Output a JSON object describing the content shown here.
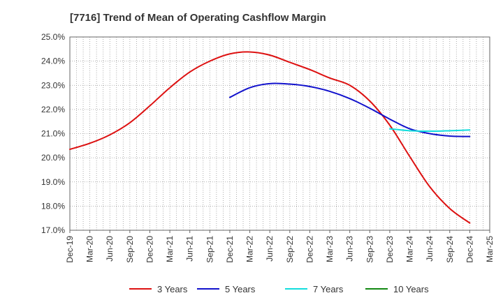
{
  "chart_data": {
    "type": "line",
    "title": "[7716]  Trend of Mean of Operating Cashflow Margin",
    "xlabel": "",
    "ylabel": "",
    "x_ticks": [
      "Dec-19",
      "Mar-20",
      "Jun-20",
      "Sep-20",
      "Dec-20",
      "Mar-21",
      "Jun-21",
      "Sep-21",
      "Dec-21",
      "Mar-22",
      "Jun-22",
      "Sep-22",
      "Dec-22",
      "Mar-23",
      "Jun-23",
      "Sep-23",
      "Dec-23",
      "Mar-24",
      "Jun-24",
      "Sep-24",
      "Dec-24",
      "Mar-25"
    ],
    "y_ticks": [
      "17.0%",
      "18.0%",
      "19.0%",
      "20.0%",
      "21.0%",
      "22.0%",
      "23.0%",
      "24.0%",
      "25.0%"
    ],
    "ylim": [
      17.0,
      25.0
    ],
    "grid": true,
    "legend_position": "bottom",
    "series": [
      {
        "name": "3 Years",
        "color": "#dd1111",
        "x": [
          "Dec-19",
          "Mar-20",
          "Jun-20",
          "Sep-20",
          "Dec-20",
          "Mar-21",
          "Jun-21",
          "Sep-21",
          "Dec-21",
          "Mar-22",
          "Jun-22",
          "Sep-22",
          "Dec-22",
          "Mar-23",
          "Jun-23",
          "Sep-23",
          "Dec-23",
          "Mar-24",
          "Jun-24",
          "Sep-24",
          "Dec-24"
        ],
        "values": [
          20.35,
          20.6,
          20.95,
          21.45,
          22.15,
          22.9,
          23.55,
          24.0,
          24.3,
          24.38,
          24.25,
          23.95,
          23.65,
          23.3,
          23.0,
          22.35,
          21.35,
          20.05,
          18.8,
          17.9,
          17.3
        ]
      },
      {
        "name": "5 Years",
        "color": "#1111cc",
        "x": [
          "Dec-21",
          "Mar-22",
          "Jun-22",
          "Sep-22",
          "Dec-22",
          "Mar-23",
          "Jun-23",
          "Sep-23",
          "Dec-23",
          "Mar-24",
          "Jun-24",
          "Sep-24",
          "Dec-24"
        ],
        "values": [
          22.5,
          22.9,
          23.07,
          23.05,
          22.95,
          22.75,
          22.45,
          22.05,
          21.6,
          21.2,
          21.0,
          20.9,
          20.88
        ]
      },
      {
        "name": "7 Years",
        "color": "#11dddd",
        "x": [
          "Dec-23",
          "Mar-24",
          "Jun-24",
          "Sep-24",
          "Dec-24"
        ],
        "values": [
          21.2,
          21.12,
          21.1,
          21.12,
          21.15
        ]
      },
      {
        "name": "10 Years",
        "color": "#118811",
        "x": [],
        "values": []
      }
    ]
  }
}
